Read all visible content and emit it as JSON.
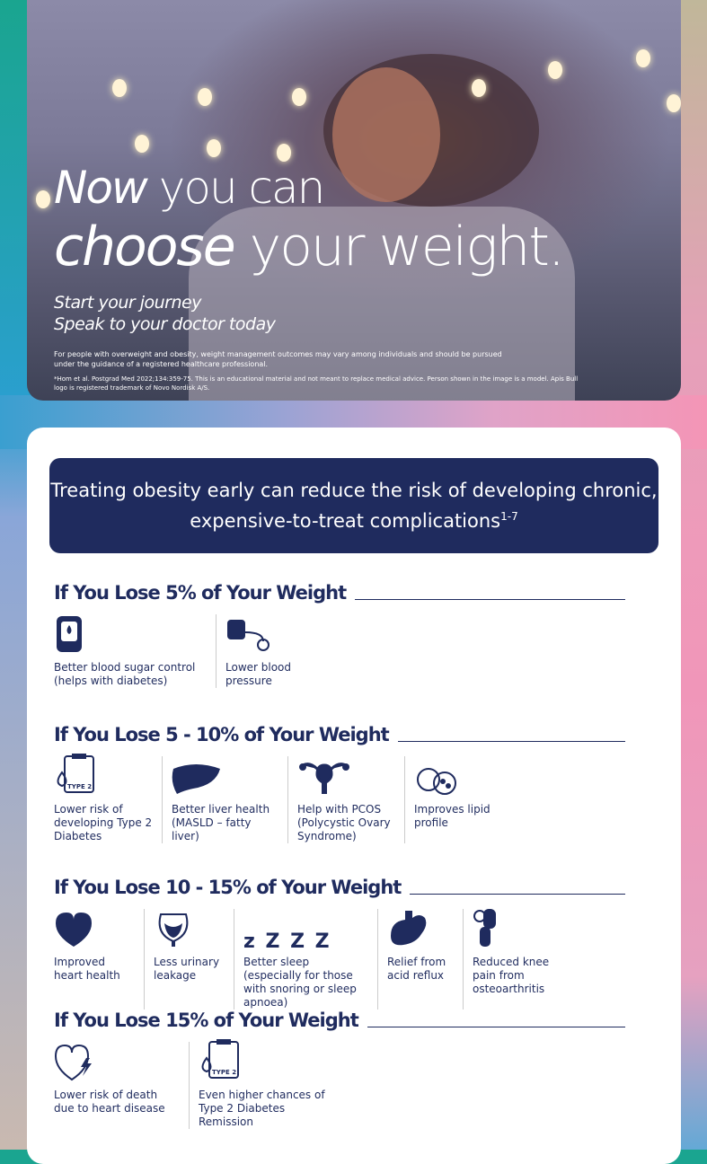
{
  "hero": {
    "title_italic": "Now",
    "title_rest1": " you can",
    "title_italic2": "choose",
    "title_rest2": " your weight.",
    "sub1": "Start your journey",
    "sub2": "Speak to your doctor today",
    "disclaimer": "For people with overweight and obesity, weight management outcomes may vary among individuals and should be pursued under the guidance of a registered healthcare professional.",
    "reference": "*Hom et al. Postgrad Med 2022;134:359-75. This is an educational material and not meant to replace medical advice. Person shown in the image is a model. Apis Bull logo is registered trademark of Novo Nordisk A/S."
  },
  "banner": {
    "text": "Treating obesity early can reduce the risk of developing chronic, expensive-to-treat complications",
    "sup": "1-7"
  },
  "colors": {
    "navy": "#1f2b5e"
  },
  "sections": [
    {
      "title": "If You Lose 5% of Your Weight",
      "items": [
        {
          "icon": "glucometer-icon",
          "label": "Better blood sugar control (helps with diabetes)"
        },
        {
          "icon": "blood-pressure-icon",
          "label": "Lower blood pressure"
        }
      ]
    },
    {
      "title": "If You Lose 5 - 10% of Your Weight",
      "items": [
        {
          "icon": "clipboard-type2-icon",
          "badge": "TYPE 2",
          "label": "Lower risk of developing Type 2 Diabetes"
        },
        {
          "icon": "liver-icon",
          "label": "Better liver health (MASLD – fatty liver)"
        },
        {
          "icon": "uterus-icon",
          "label": "Help with PCOS (Polycystic Ovary Syndrome)"
        },
        {
          "icon": "lipid-icon",
          "label": "Improves lipid profile"
        }
      ]
    },
    {
      "title": "If You Lose 10 - 15% of Your Weight",
      "items": [
        {
          "icon": "heart-icon",
          "label": "Improved heart health"
        },
        {
          "icon": "bladder-icon",
          "label": "Less urinary leakage"
        },
        {
          "icon": "sleep-icon",
          "glyph": "z Z Z Z",
          "label": "Better sleep (especially for those with snoring or sleep apnoea)"
        },
        {
          "icon": "stomach-icon",
          "label": "Relief from acid reflux"
        },
        {
          "icon": "knee-icon",
          "label": "Reduced knee pain from osteoarthritis"
        }
      ]
    },
    {
      "title": "If You Lose 15% of Your Weight",
      "items": [
        {
          "icon": "heart-lightning-icon",
          "label": "Lower risk of death due to heart disease"
        },
        {
          "icon": "clipboard-type2-icon",
          "badge": "TYPE 2",
          "label": "Even higher chances of Type 2 Diabetes Remission"
        }
      ]
    }
  ]
}
